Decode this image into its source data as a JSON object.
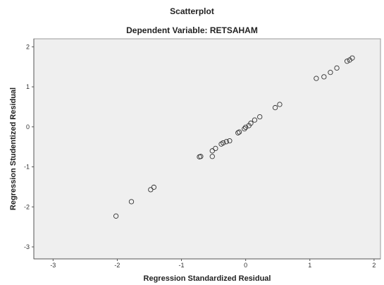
{
  "chart_data": {
    "type": "scatter",
    "title": "Scatterplot",
    "subtitle": "Dependent Variable: RETSAHAM",
    "xlabel": "Regression Standardized Residual",
    "ylabel": "Regression Studentized Residual",
    "xlim": [
      -3.3,
      2.1
    ],
    "ylim": [
      -3.3,
      2.2
    ],
    "xticks": [
      -3,
      -2,
      -1,
      0,
      1,
      2
    ],
    "yticks": [
      2,
      1,
      0,
      -1,
      -2,
      -3
    ],
    "grid": false,
    "background": "#efefef",
    "marker_color": "#333333",
    "x": [
      -2.02,
      -1.78,
      -1.48,
      -1.43,
      -0.72,
      -0.7,
      -0.52,
      -0.52,
      -0.47,
      -0.38,
      -0.35,
      -0.3,
      -0.25,
      -0.12,
      -0.1,
      -0.02,
      0.0,
      0.05,
      0.08,
      0.14,
      0.22,
      0.46,
      0.53,
      1.1,
      1.22,
      1.32,
      1.42,
      1.58,
      1.62,
      1.66
    ],
    "y": [
      -2.23,
      -1.87,
      -1.57,
      -1.51,
      -0.75,
      -0.74,
      -0.74,
      -0.6,
      -0.54,
      -0.43,
      -0.4,
      -0.37,
      -0.35,
      -0.15,
      -0.13,
      -0.05,
      -0.01,
      0.03,
      0.09,
      0.17,
      0.25,
      0.48,
      0.56,
      1.21,
      1.25,
      1.36,
      1.47,
      1.64,
      1.67,
      1.72
    ]
  }
}
